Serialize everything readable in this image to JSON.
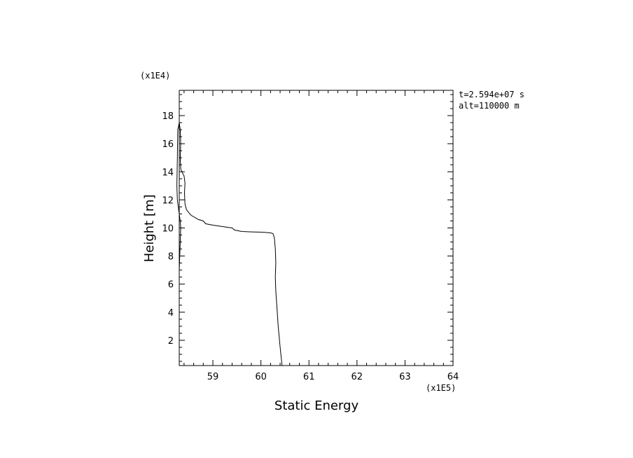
{
  "chart_data": {
    "type": "line",
    "xlabel": "Static Energy",
    "ylabel": "Height [m]",
    "x_multiplier_label": "(x1E5)",
    "y_multiplier_label": "(x1E4)",
    "annotation": {
      "line1": "t=2.594e+07 s",
      "line2": "alt=110000 m"
    },
    "xlim": [
      58.3,
      64
    ],
    "ylim": [
      0.2,
      19.8
    ],
    "x_ticks": [
      59,
      60,
      61,
      62,
      63,
      64
    ],
    "y_ticks": [
      2,
      4,
      6,
      8,
      10,
      12,
      14,
      16,
      18
    ],
    "x_tick_labels": [
      "59",
      "60",
      "61",
      "62",
      "63",
      "64"
    ],
    "y_tick_labels": [
      "2",
      "4",
      "6",
      "8",
      "10",
      "12",
      "14",
      "16",
      "18"
    ],
    "grid": false,
    "series": [
      {
        "values": [
          [
            60.44,
            0.2
          ],
          [
            60.4,
            1.5
          ],
          [
            60.36,
            3.0
          ],
          [
            60.33,
            4.5
          ],
          [
            60.31,
            5.5
          ],
          [
            60.3,
            6.5
          ],
          [
            60.31,
            7.5
          ],
          [
            60.3,
            8.5
          ],
          [
            60.28,
            9.3
          ],
          [
            60.25,
            9.6
          ],
          [
            60.2,
            9.65
          ],
          [
            60.0,
            9.7
          ],
          [
            59.8,
            9.72
          ],
          [
            59.6,
            9.75
          ],
          [
            59.45,
            9.85
          ],
          [
            59.4,
            10.0
          ],
          [
            59.2,
            10.1
          ],
          [
            59.0,
            10.2
          ],
          [
            58.85,
            10.3
          ],
          [
            58.8,
            10.5
          ],
          [
            58.7,
            10.6
          ],
          [
            58.55,
            10.9
          ],
          [
            58.52,
            11.0
          ],
          [
            58.45,
            11.3
          ],
          [
            58.42,
            11.7
          ],
          [
            58.41,
            12.5
          ],
          [
            58.42,
            13.2
          ],
          [
            58.4,
            13.7
          ],
          [
            58.37,
            13.9
          ],
          [
            58.33,
            14.2
          ],
          [
            58.32,
            15.0
          ],
          [
            58.33,
            16.0
          ],
          [
            58.32,
            17.0
          ],
          [
            58.3,
            17.5
          ],
          [
            58.27,
            17.0
          ],
          [
            58.26,
            15.0
          ],
          [
            58.25,
            13.0
          ],
          [
            58.26,
            12.0
          ],
          [
            58.28,
            11.5
          ],
          [
            58.3,
            11.0
          ],
          [
            58.32,
            10.5
          ],
          [
            58.33,
            10.0
          ],
          [
            58.32,
            9.0
          ],
          [
            58.31,
            8.0
          ],
          [
            58.3,
            7.0
          ],
          [
            58.3,
            5.5
          ],
          [
            58.3,
            4.0
          ],
          [
            58.3,
            2.0
          ],
          [
            58.3,
            0.2
          ]
        ]
      }
    ]
  }
}
